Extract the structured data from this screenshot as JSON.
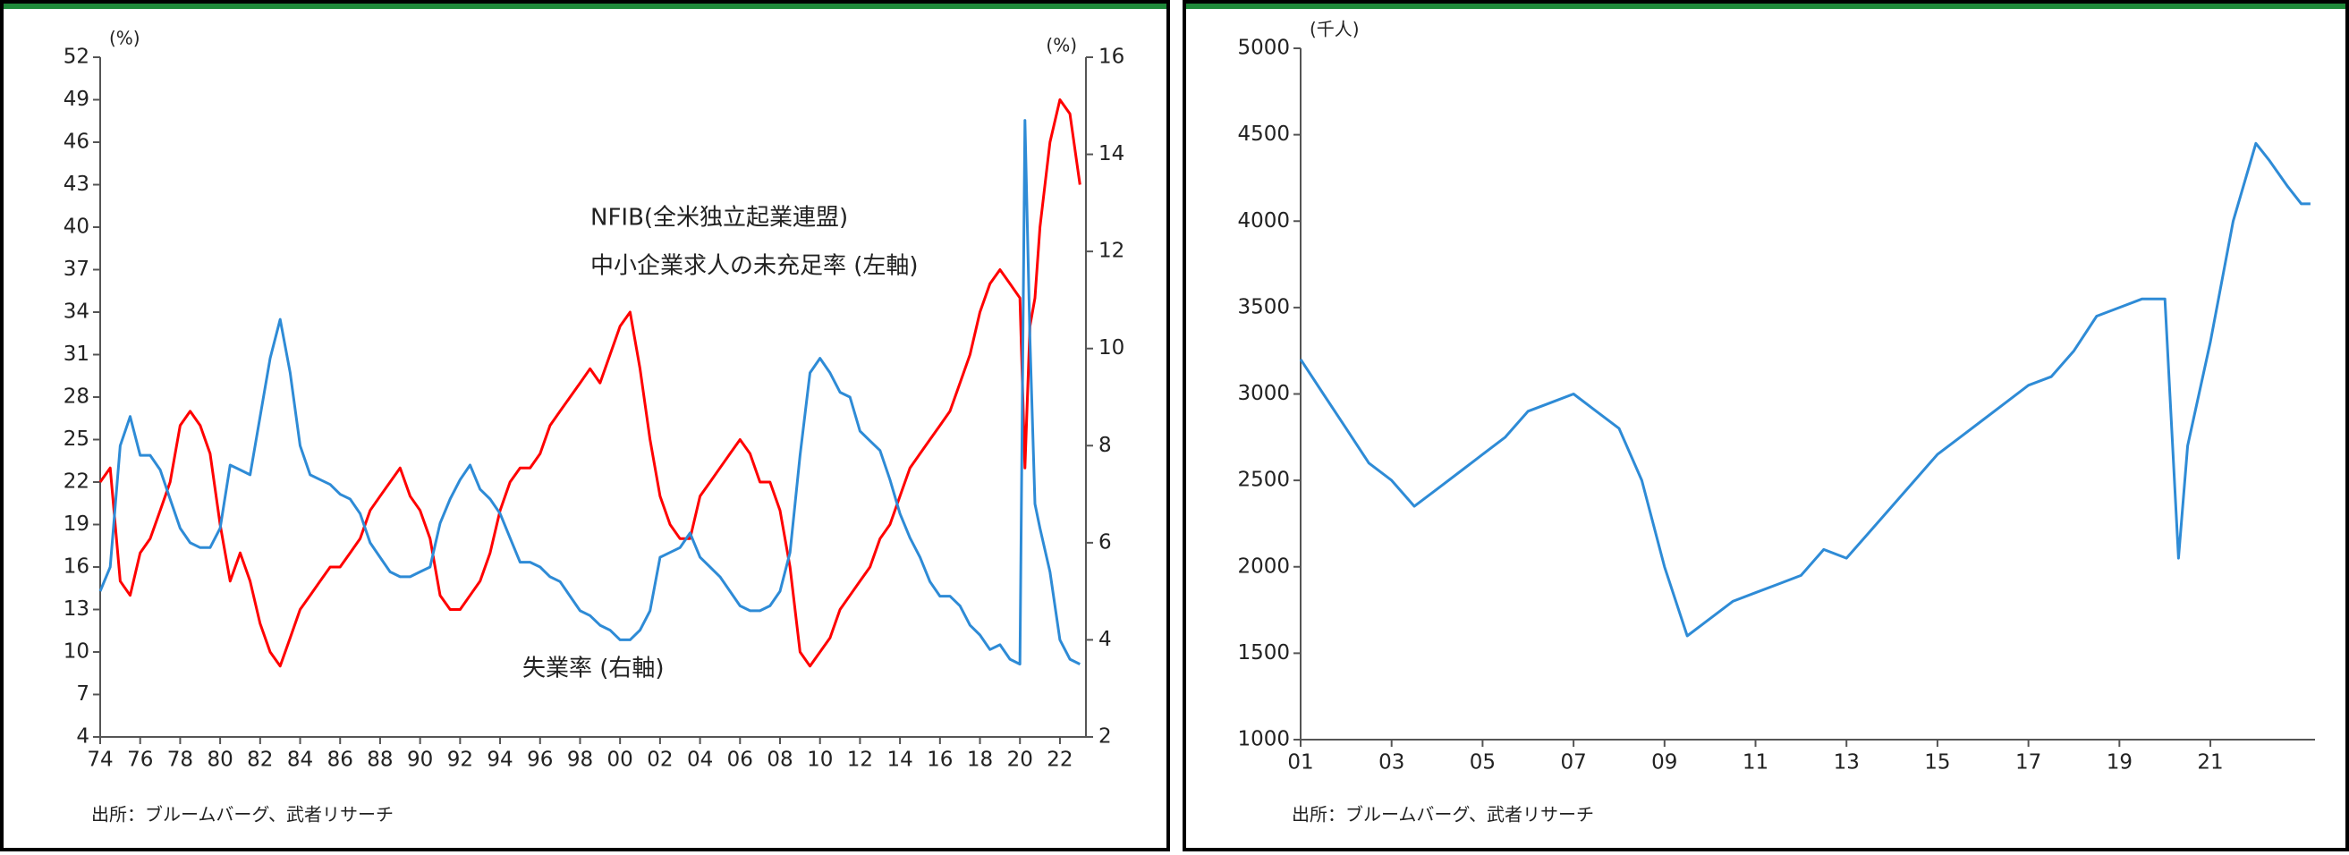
{
  "chart_data": [
    {
      "type": "line",
      "ylabel": "(%)",
      "y2label": "(%)",
      "x": [
        1974,
        1974.5,
        1975,
        1975.5,
        1976,
        1976.5,
        1977,
        1977.5,
        1978,
        1978.5,
        1979,
        1979.5,
        1980,
        1980.5,
        1981,
        1981.5,
        1982,
        1982.5,
        1983,
        1983.5,
        1984,
        1984.5,
        1985,
        1985.5,
        1986,
        1986.5,
        1987,
        1987.5,
        1988,
        1988.5,
        1989,
        1989.5,
        1990,
        1990.5,
        1991,
        1991.5,
        1992,
        1992.5,
        1993,
        1993.5,
        1994,
        1994.5,
        1995,
        1995.5,
        1996,
        1996.5,
        1997,
        1997.5,
        1998,
        1998.5,
        1999,
        1999.5,
        2000,
        2000.5,
        2001,
        2001.5,
        2002,
        2002.5,
        2003,
        2003.5,
        2004,
        2004.5,
        2005,
        2005.5,
        2006,
        2006.5,
        2007,
        2007.5,
        2008,
        2008.5,
        2009,
        2009.5,
        2010,
        2010.5,
        2011,
        2011.5,
        2012,
        2012.5,
        2013,
        2013.5,
        2014,
        2014.5,
        2015,
        2015.5,
        2016,
        2016.5,
        2017,
        2017.5,
        2018,
        2018.5,
        2019,
        2019.5,
        2020,
        2020.25,
        2020.5,
        2020.75,
        2021,
        2021.5,
        2022,
        2022.5,
        2023
      ],
      "series": [
        {
          "name": "NFIB(全米独立起業連盟)",
          "color": "#ff0000",
          "values": [
            22,
            23,
            15,
            14,
            17,
            18,
            20,
            22,
            26,
            27,
            26,
            24,
            19,
            15,
            17,
            15,
            12,
            10,
            9,
            11,
            13,
            14,
            15,
            16,
            16,
            17,
            18,
            20,
            21,
            22,
            23,
            21,
            20,
            18,
            14,
            13,
            13,
            14,
            15,
            17,
            20,
            22,
            23,
            23,
            24,
            26,
            27,
            28,
            29,
            30,
            29,
            31,
            33,
            34,
            30,
            25,
            21,
            19,
            18,
            18,
            21,
            22,
            23,
            24,
            25,
            24,
            22,
            22,
            20,
            16,
            10,
            9,
            10,
            11,
            13,
            14,
            15,
            16,
            18,
            19,
            21,
            23,
            24,
            25,
            26,
            27,
            29,
            31,
            34,
            36,
            37,
            36,
            35,
            23,
            33,
            35,
            40,
            46,
            49,
            48,
            43
          ]
        },
        {
          "name": "失業率 (右軸)",
          "color": "#2e8bd6",
          "axis": "y2",
          "values": [
            5.0,
            5.5,
            8.0,
            8.6,
            7.8,
            7.8,
            7.5,
            6.9,
            6.3,
            6.0,
            5.9,
            5.9,
            6.3,
            7.6,
            7.5,
            7.4,
            8.6,
            9.8,
            10.6,
            9.5,
            8.0,
            7.4,
            7.3,
            7.2,
            7.0,
            6.9,
            6.6,
            6.0,
            5.7,
            5.4,
            5.3,
            5.3,
            5.4,
            5.5,
            6.4,
            6.9,
            7.3,
            7.6,
            7.1,
            6.9,
            6.6,
            6.1,
            5.6,
            5.6,
            5.5,
            5.3,
            5.2,
            4.9,
            4.6,
            4.5,
            4.3,
            4.2,
            4.0,
            4.0,
            4.2,
            4.6,
            5.7,
            5.8,
            5.9,
            6.2,
            5.7,
            5.5,
            5.3,
            5.0,
            4.7,
            4.6,
            4.6,
            4.7,
            5.0,
            5.8,
            7.8,
            9.5,
            9.8,
            9.5,
            9.1,
            9.0,
            8.3,
            8.1,
            7.9,
            7.3,
            6.6,
            6.1,
            5.7,
            5.2,
            4.9,
            4.9,
            4.7,
            4.3,
            4.1,
            3.8,
            3.9,
            3.6,
            3.5,
            14.7,
            10.2,
            6.8,
            6.3,
            5.4,
            4.0,
            3.6,
            3.5
          ]
        }
      ],
      "annotation": "中小企業求人の未充足率 (左軸)",
      "xlim": [
        1974,
        2023.3
      ],
      "xticks": [
        {
          "value": 1974,
          "label": "74"
        },
        {
          "value": 1976,
          "label": "76"
        },
        {
          "value": 1978,
          "label": "78"
        },
        {
          "value": 1980,
          "label": "80"
        },
        {
          "value": 1982,
          "label": "82"
        },
        {
          "value": 1984,
          "label": "84"
        },
        {
          "value": 1986,
          "label": "86"
        },
        {
          "value": 1988,
          "label": "88"
        },
        {
          "value": 1990,
          "label": "90"
        },
        {
          "value": 1992,
          "label": "92"
        },
        {
          "value": 1994,
          "label": "94"
        },
        {
          "value": 1996,
          "label": "96"
        },
        {
          "value": 1998,
          "label": "98"
        },
        {
          "value": 2000,
          "label": "00"
        },
        {
          "value": 2002,
          "label": "02"
        },
        {
          "value": 2004,
          "label": "04"
        },
        {
          "value": 2006,
          "label": "06"
        },
        {
          "value": 2008,
          "label": "08"
        },
        {
          "value": 2010,
          "label": "10"
        },
        {
          "value": 2012,
          "label": "12"
        },
        {
          "value": 2014,
          "label": "14"
        },
        {
          "value": 2016,
          "label": "16"
        },
        {
          "value": 2018,
          "label": "18"
        },
        {
          "value": 2020,
          "label": "20"
        },
        {
          "value": 2022,
          "label": "22"
        }
      ],
      "ylim": [
        4,
        52
      ],
      "yticks": [
        4,
        7,
        10,
        13,
        16,
        19,
        22,
        25,
        28,
        31,
        34,
        37,
        40,
        43,
        46,
        49,
        52
      ],
      "y2lim": [
        2,
        16
      ],
      "y2ticks": [
        2,
        4,
        6,
        8,
        10,
        12,
        14,
        16
      ],
      "source": "出所：ブルームバーグ、武者リサーチ"
    },
    {
      "type": "line",
      "ylabel": "(千人)",
      "x": [
        2001,
        2001.5,
        2002,
        2002.5,
        2003,
        2003.5,
        2004,
        2004.5,
        2005,
        2005.5,
        2006,
        2006.5,
        2007,
        2007.5,
        2008,
        2008.5,
        2009,
        2009.5,
        2010,
        2010.5,
        2011,
        2011.5,
        2012,
        2012.5,
        2013,
        2013.5,
        2014,
        2014.5,
        2015,
        2015.5,
        2016,
        2016.5,
        2017,
        2017.5,
        2018,
        2018.5,
        2019,
        2019.5,
        2020,
        2020.3,
        2020.5,
        2021,
        2021.5,
        2022,
        2022.3,
        2022.7,
        2023,
        2023.2
      ],
      "values": [
        3200,
        3000,
        2800,
        2600,
        2500,
        2350,
        2450,
        2550,
        2650,
        2750,
        2900,
        2950,
        3000,
        2900,
        2800,
        2500,
        2000,
        1600,
        1700,
        1800,
        1850,
        1900,
        1950,
        2100,
        2050,
        2200,
        2350,
        2500,
        2650,
        2750,
        2850,
        2950,
        3050,
        3100,
        3250,
        3450,
        3500,
        3550,
        3550,
        2050,
        2700,
        3300,
        4000,
        4450,
        4350,
        4200,
        4100,
        4100
      ],
      "color": "#2e8bd6",
      "xlim": [
        2001,
        2023.3
      ],
      "xticks": [
        {
          "value": 2001,
          "label": "01"
        },
        {
          "value": 2003,
          "label": "03"
        },
        {
          "value": 2005,
          "label": "05"
        },
        {
          "value": 2007,
          "label": "07"
        },
        {
          "value": 2009,
          "label": "09"
        },
        {
          "value": 2011,
          "label": "11"
        },
        {
          "value": 2013,
          "label": "13"
        },
        {
          "value": 2015,
          "label": "15"
        },
        {
          "value": 2017,
          "label": "17"
        },
        {
          "value": 2019,
          "label": "19"
        },
        {
          "value": 2021,
          "label": "21"
        }
      ],
      "ylim": [
        1000,
        5000
      ],
      "yticks": [
        1000,
        1500,
        2000,
        2500,
        3000,
        3500,
        4000,
        4500,
        5000
      ],
      "source": "出所：ブルームバーグ、武者リサーチ"
    }
  ]
}
